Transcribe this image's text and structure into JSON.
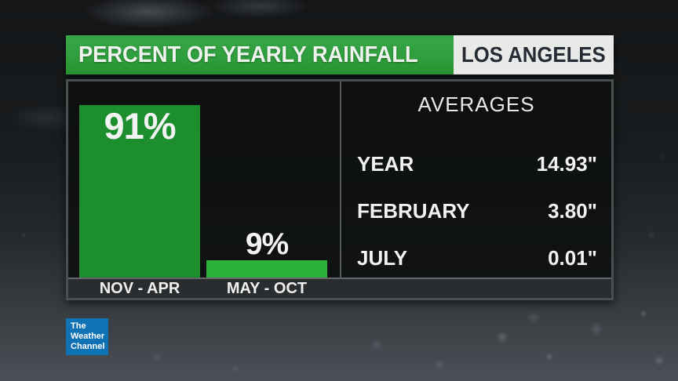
{
  "header": {
    "title": "PERCENT OF YEARLY RAINFALL",
    "location": "LOS ANGELES"
  },
  "chart_data": {
    "type": "bar",
    "title": "PERCENT OF YEARLY RAINFALL",
    "subtitle": "LOS ANGELES",
    "categories": [
      "NOV - APR",
      "MAY - OCT"
    ],
    "values": [
      91,
      9
    ],
    "value_labels": [
      "91%",
      "9%"
    ],
    "unit": "%",
    "ylim": [
      0,
      100
    ],
    "grid": false,
    "legend": false,
    "bar_colors": [
      "#1d8e2d",
      "#2ab33a"
    ]
  },
  "averages": {
    "title": "AVERAGES",
    "rows": [
      {
        "label": "YEAR",
        "value": "14.93\""
      },
      {
        "label": "FEBRUARY",
        "value": "3.80\""
      },
      {
        "label": "JULY",
        "value": "0.01\""
      }
    ]
  },
  "logo": {
    "line1": "The",
    "line2": "Weather",
    "line3": "Channel"
  },
  "colors": {
    "header_green": "#2f9e3d",
    "location_bg": "#e9e9e7",
    "location_text": "#262c34",
    "bar_nov_apr": "#1d8e2d",
    "bar_may_oct": "#2ab33a",
    "panel_border": "#4b4f52",
    "axis_strip": "#2a2d2f",
    "logo_blue": "#0f72b4"
  }
}
